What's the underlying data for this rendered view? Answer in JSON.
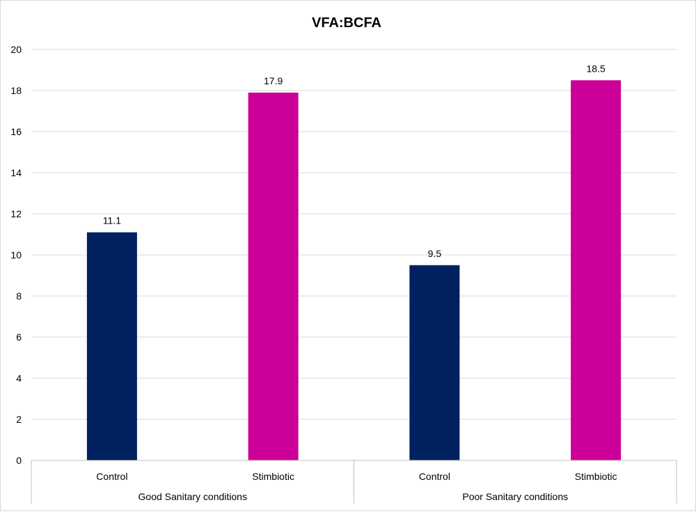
{
  "chart_data": {
    "type": "bar",
    "title": "VFA:BCFA",
    "xlabel": "",
    "ylabel": "",
    "ylim": [
      0,
      20
    ],
    "yticks": [
      0,
      2,
      4,
      6,
      8,
      10,
      12,
      14,
      16,
      18,
      20
    ],
    "grid": true,
    "legend": "none",
    "groups": [
      {
        "label": "Good Sanitary conditions",
        "categories": [
          {
            "label": "Control",
            "value": 11.1,
            "color": "#002060"
          },
          {
            "label": "Stimbiotic",
            "value": 17.9,
            "color": "#CC0099"
          }
        ]
      },
      {
        "label": "Poor Sanitary conditions",
        "categories": [
          {
            "label": "Control",
            "value": 9.5,
            "color": "#002060"
          },
          {
            "label": "Stimbiotic",
            "value": 18.5,
            "color": "#CC0099"
          }
        ]
      }
    ]
  }
}
